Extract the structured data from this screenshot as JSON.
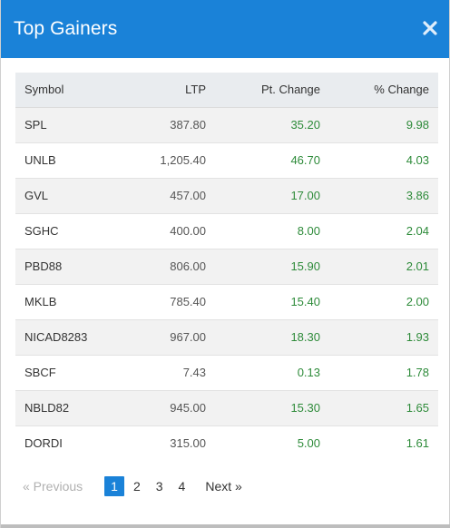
{
  "modal": {
    "title": "Top Gainers"
  },
  "table": {
    "headers": [
      "Symbol",
      "LTP",
      "Pt. Change",
      "% Change"
    ],
    "rows": [
      {
        "symbol": "SPL",
        "ltp": "387.80",
        "pt_change": "35.20",
        "pct_change": "9.98"
      },
      {
        "symbol": "UNLB",
        "ltp": "1,205.40",
        "pt_change": "46.70",
        "pct_change": "4.03"
      },
      {
        "symbol": "GVL",
        "ltp": "457.00",
        "pt_change": "17.00",
        "pct_change": "3.86"
      },
      {
        "symbol": "SGHC",
        "ltp": "400.00",
        "pt_change": "8.00",
        "pct_change": "2.04"
      },
      {
        "symbol": "PBD88",
        "ltp": "806.00",
        "pt_change": "15.90",
        "pct_change": "2.01"
      },
      {
        "symbol": "MKLB",
        "ltp": "785.40",
        "pt_change": "15.40",
        "pct_change": "2.00"
      },
      {
        "symbol": "NICAD8283",
        "ltp": "967.00",
        "pt_change": "18.30",
        "pct_change": "1.93"
      },
      {
        "symbol": "SBCF",
        "ltp": "7.43",
        "pt_change": "0.13",
        "pct_change": "1.78"
      },
      {
        "symbol": "NBLD82",
        "ltp": "945.00",
        "pt_change": "15.30",
        "pct_change": "1.65"
      },
      {
        "symbol": "DORDI",
        "ltp": "315.00",
        "pt_change": "5.00",
        "pct_change": "1.61"
      }
    ]
  },
  "pagination": {
    "previous_label": "«   Previous",
    "next_label": "Next   »",
    "pages": [
      "1",
      "2",
      "3",
      "4"
    ],
    "current_page": "1"
  },
  "colors": {
    "header_bg": "#1a82d8",
    "positive": "#2e8b3a",
    "active_page": "#1a82d8"
  },
  "icons": {
    "close": "close-icon"
  }
}
